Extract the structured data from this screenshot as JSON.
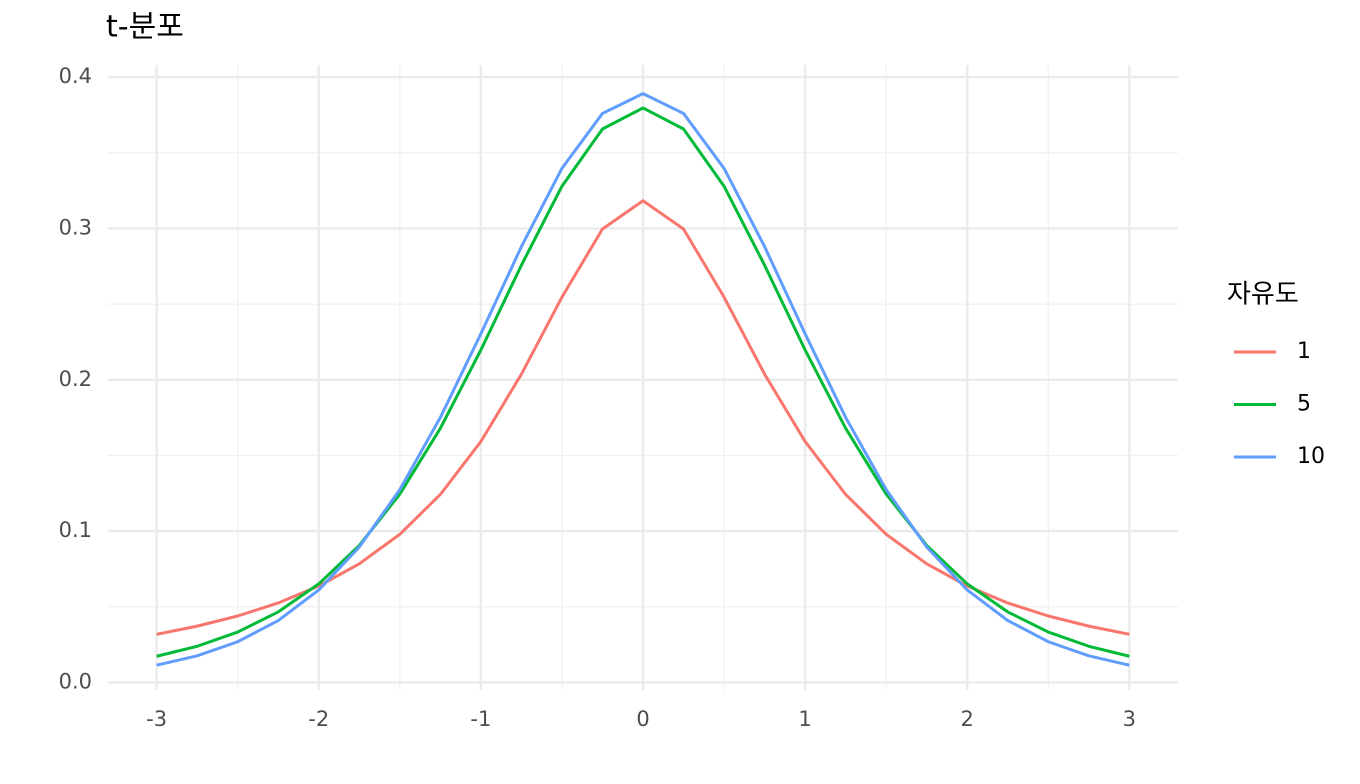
{
  "chart_data": {
    "type": "line",
    "title": "t-분포",
    "legend_title": "자유도",
    "legend_position": "right",
    "grid": true,
    "x": [
      -3,
      -2.75,
      -2.5,
      -2.25,
      -2,
      -1.75,
      -1.5,
      -1.25,
      -1,
      -0.75,
      -0.5,
      -0.25,
      0,
      0.25,
      0.5,
      0.75,
      1,
      1.25,
      1.5,
      1.75,
      2,
      2.25,
      2.5,
      2.75,
      3
    ],
    "series": [
      {
        "name": "1",
        "color": "#F8766D",
        "values": [
          0.0318,
          0.0372,
          0.0439,
          0.0525,
          0.0637,
          0.0784,
          0.0979,
          0.1242,
          0.1592,
          0.2037,
          0.2546,
          0.2996,
          0.3183,
          0.2996,
          0.2546,
          0.2037,
          0.1592,
          0.1242,
          0.0979,
          0.0784,
          0.0637,
          0.0525,
          0.0439,
          0.0372,
          0.0318
        ]
      },
      {
        "name": "5",
        "color": "#00BA38",
        "values": [
          0.0173,
          0.0239,
          0.0333,
          0.0466,
          0.0651,
          0.0905,
          0.1245,
          0.1679,
          0.2197,
          0.2757,
          0.3279,
          0.3657,
          0.3796,
          0.3657,
          0.3279,
          0.2757,
          0.2197,
          0.1679,
          0.1245,
          0.0905,
          0.0651,
          0.0466,
          0.0333,
          0.0239,
          0.0173
        ]
      },
      {
        "name": "10",
        "color": "#619CFF",
        "values": [
          0.0114,
          0.0176,
          0.0269,
          0.0409,
          0.0611,
          0.0895,
          0.1274,
          0.1751,
          0.2304,
          0.288,
          0.3397,
          0.376,
          0.3891,
          0.376,
          0.3397,
          0.288,
          0.2304,
          0.1751,
          0.1274,
          0.0895,
          0.0611,
          0.0409,
          0.0269,
          0.0176,
          0.0114
        ]
      }
    ],
    "xlim": [
      -3.3,
      3.3
    ],
    "xticks": [
      -3,
      -2,
      -1,
      0,
      1,
      2,
      3
    ],
    "ylim": [
      -0.005,
      0.408
    ],
    "yticks": [
      {
        "value": 0,
        "label": "0.0"
      },
      0.1,
      0.2,
      0.3,
      0.4
    ]
  }
}
